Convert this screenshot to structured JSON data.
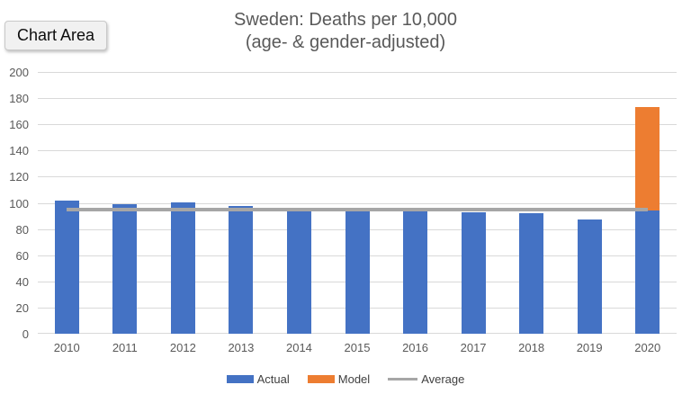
{
  "tooltip": {
    "label": "Chart Area"
  },
  "chart_data": {
    "type": "bar",
    "title": "Sweden: Deaths per 10,000",
    "subtitle": "(age- & gender-adjusted)",
    "categories": [
      "2010",
      "2011",
      "2012",
      "2013",
      "2014",
      "2015",
      "2016",
      "2017",
      "2018",
      "2019",
      "2020"
    ],
    "series": [
      {
        "name": "Actual",
        "color": "#4472C4",
        "values": [
          101.5,
          99,
          100.5,
          97.5,
          93.5,
          93.5,
          93.5,
          93,
          92,
          87,
          94.5
        ]
      },
      {
        "name": "Model",
        "color": "#ED7D31",
        "values": [
          null,
          null,
          null,
          null,
          null,
          null,
          null,
          null,
          null,
          null,
          79
        ],
        "stacking": "stacked on Actual; 2020 stack top = 173.5"
      }
    ],
    "average_line": {
      "name": "Average",
      "color": "#A6A6A6",
      "value": 95
    },
    "ylim": [
      0,
      200
    ],
    "ytick_step": 20,
    "grid": true,
    "gridline_color": "#D9D9D9",
    "legend_position": "bottom",
    "legend": [
      {
        "label": "Actual",
        "color": "#4472C4",
        "swatch": "rect"
      },
      {
        "label": "Model",
        "color": "#ED7D31",
        "swatch": "rect"
      },
      {
        "label": "Average",
        "color": "#A6A6A6",
        "swatch": "line"
      }
    ]
  }
}
